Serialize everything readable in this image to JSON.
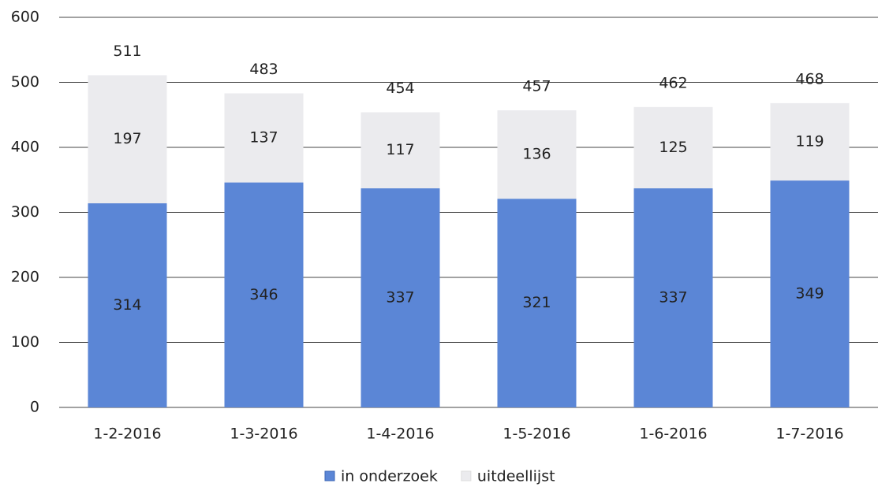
{
  "chart_data": {
    "type": "stacked-bar",
    "categories": [
      "1-2-2016",
      "1-3-2016",
      "1-4-2016",
      "1-5-2016",
      "1-6-2016",
      "1-7-2016"
    ],
    "series": [
      {
        "name": "in onderzoek",
        "color": "#5b86d6",
        "values": [
          314,
          346,
          337,
          321,
          337,
          349
        ]
      },
      {
        "name": "uitdeellijst",
        "color": "#ebebee",
        "values": [
          197,
          137,
          117,
          136,
          125,
          119
        ]
      }
    ],
    "totals": [
      511,
      483,
      454,
      457,
      462,
      468
    ],
    "ylim": [
      0,
      600
    ],
    "yticks": [
      0,
      100,
      200,
      300,
      400,
      500,
      600
    ],
    "grid": true,
    "legend": "bottom"
  }
}
